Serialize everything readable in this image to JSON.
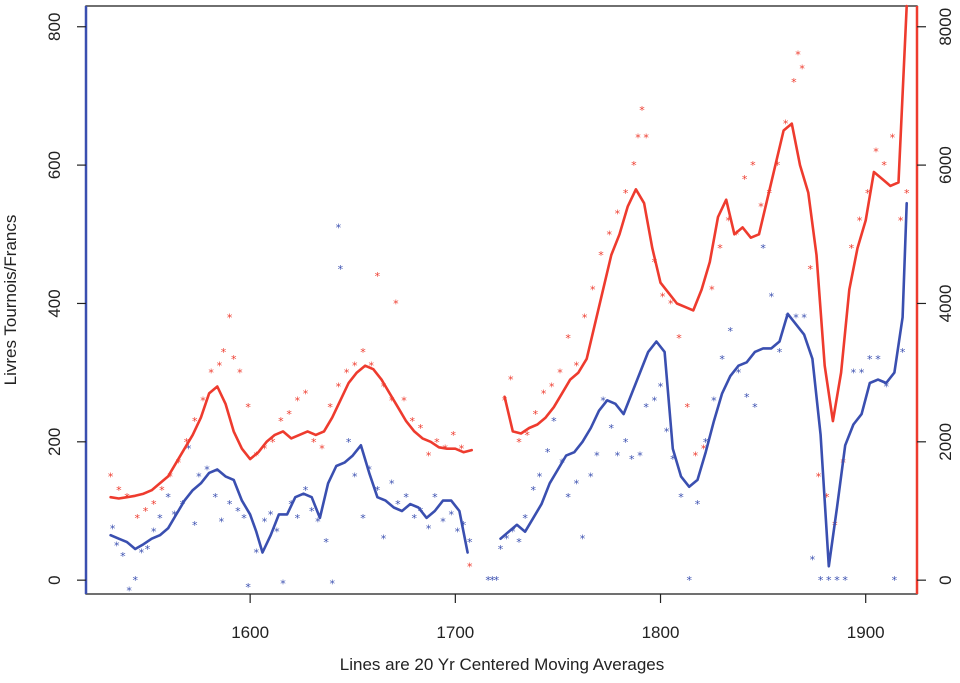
{
  "chart_data": {
    "type": "line",
    "title": "",
    "xlabel": "Lines are 20 Yr Centered Moving Averages",
    "ylabel": "Livres Tournois/Francs",
    "ylabel_right": "",
    "xlim": [
      1520,
      1925
    ],
    "ylim_left": [
      -20,
      830
    ],
    "ylim_right": [
      -200,
      8300
    ],
    "x_ticks": [
      "1600",
      "1700",
      "1800",
      "1900"
    ],
    "y_ticks_left": [
      "0",
      "200",
      "400",
      "600",
      "800"
    ],
    "y_ticks_right": [
      "0",
      "2000",
      "4000",
      "6000",
      "8000"
    ],
    "grid": false,
    "legend": "none",
    "colors": {
      "left_series": "#3a4fb0",
      "right_series": "#ee3b2e"
    },
    "series": [
      {
        "axis": "left",
        "kind": "moving_average",
        "color": "#3a4fb0",
        "x": [
          1532,
          1536,
          1540,
          1544,
          1548,
          1552,
          1556,
          1560,
          1564,
          1568,
          1572,
          1576,
          1580,
          1584,
          1588,
          1592,
          1596,
          1600,
          1603,
          1606,
          1610,
          1614,
          1618,
          1622,
          1626,
          1630,
          1634,
          1638,
          1642,
          1646,
          1650,
          1654,
          1658,
          1662,
          1666,
          1670,
          1674,
          1678,
          1682,
          1686,
          1690,
          1694,
          1698,
          1702,
          1706,
          null,
          1722,
          1726,
          1730,
          1734,
          1738,
          1742,
          1746,
          1750,
          1754,
          1758,
          1762,
          1766,
          1770,
          1774,
          1778,
          1782,
          1786,
          1790,
          1794,
          1798,
          1802,
          1806,
          1810,
          1814,
          1818,
          1822,
          1826,
          1830,
          1834,
          1838,
          1842,
          1846,
          1850,
          1854,
          1858,
          1862,
          1866,
          1870,
          1874,
          1878,
          1882,
          1886,
          1890,
          1894,
          1898,
          1902,
          1906,
          1910,
          1914,
          1918,
          1920
        ],
        "y": [
          65,
          60,
          55,
          45,
          52,
          60,
          65,
          75,
          95,
          115,
          130,
          140,
          155,
          160,
          150,
          145,
          115,
          95,
          70,
          40,
          65,
          95,
          95,
          120,
          125,
          120,
          90,
          140,
          165,
          170,
          180,
          195,
          155,
          120,
          115,
          105,
          100,
          110,
          105,
          90,
          100,
          115,
          115,
          100,
          40,
          null,
          60,
          70,
          80,
          70,
          90,
          110,
          140,
          160,
          180,
          185,
          200,
          220,
          245,
          260,
          255,
          240,
          270,
          300,
          330,
          345,
          330,
          190,
          150,
          135,
          145,
          185,
          230,
          270,
          295,
          310,
          315,
          330,
          335,
          335,
          345,
          385,
          370,
          355,
          320,
          210,
          20,
          105,
          195,
          225,
          240,
          285,
          290,
          285,
          300,
          380,
          545
        ]
      },
      {
        "axis": "left",
        "kind": "moving_average",
        "color": "#ee3b2e",
        "x": [
          1532,
          1536,
          1540,
          1544,
          1548,
          1552,
          1556,
          1560,
          1564,
          1568,
          1572,
          1576,
          1580,
          1584,
          1588,
          1592,
          1596,
          1600,
          1604,
          1608,
          1612,
          1616,
          1620,
          1624,
          1628,
          1632,
          1636,
          1640,
          1644,
          1648,
          1652,
          1656,
          1660,
          1664,
          1668,
          1672,
          1676,
          1680,
          1684,
          1688,
          1692,
          1696,
          1700,
          1704,
          1708,
          null,
          1724,
          1728,
          1732,
          1736,
          1740,
          1744,
          1748,
          1752,
          1756,
          1760,
          1764,
          1768,
          1772,
          1776,
          1780,
          1784,
          1788,
          1792,
          1796,
          1800,
          1804,
          1808,
          1812,
          1816,
          1820,
          1824,
          1828,
          1832,
          1836,
          1840,
          1844,
          1848,
          1852,
          1856,
          1860,
          1864,
          1868,
          1872,
          1876,
          1880,
          1884,
          1888,
          1892,
          1896,
          1900,
          1904,
          1908,
          1912,
          1916,
          1920
        ],
        "y": [
          120,
          118,
          120,
          122,
          125,
          130,
          140,
          150,
          170,
          190,
          210,
          235,
          270,
          280,
          255,
          215,
          190,
          175,
          185,
          200,
          210,
          215,
          205,
          210,
          215,
          210,
          215,
          235,
          260,
          285,
          300,
          310,
          305,
          290,
          270,
          250,
          230,
          215,
          205,
          200,
          192,
          190,
          190,
          185,
          188,
          null,
          265,
          215,
          212,
          220,
          225,
          235,
          250,
          270,
          290,
          300,
          320,
          370,
          420,
          470,
          500,
          540,
          565,
          545,
          480,
          430,
          415,
          400,
          395,
          390,
          420,
          460,
          525,
          550,
          500,
          510,
          495,
          500,
          550,
          600,
          650,
          660,
          600,
          560,
          470,
          310,
          230,
          300,
          420,
          480,
          520,
          590,
          580,
          570,
          575,
          830
        ]
      },
      {
        "axis": "left",
        "kind": "points",
        "color": "#3a4fb0",
        "x": [
          1533,
          1535,
          1538,
          1541,
          1544,
          1547,
          1550,
          1553,
          1556,
          1560,
          1563,
          1567,
          1570,
          1573,
          1575,
          1579,
          1583,
          1586,
          1590,
          1594,
          1597,
          1599,
          1603,
          1607,
          1610,
          1613,
          1616,
          1620,
          1623,
          1627,
          1630,
          1633,
          1637,
          1640,
          1643,
          1644,
          1648,
          1651,
          1655,
          1658,
          1662,
          1665,
          1669,
          1672,
          1676,
          1680,
          1683,
          1687,
          1690,
          1694,
          1698,
          1701,
          1704,
          1707,
          1716,
          1718,
          1720,
          1722,
          1725,
          1728,
          1731,
          1734,
          1738,
          1741,
          1745,
          1748,
          1752,
          1755,
          1759,
          1762,
          1766,
          1769,
          1772,
          1776,
          1779,
          1783,
          1786,
          1790,
          1793,
          1797,
          1800,
          1803,
          1806,
          1810,
          1814,
          1818,
          1822,
          1826,
          1830,
          1834,
          1838,
          1842,
          1846,
          1850,
          1854,
          1858,
          1862,
          1866,
          1870,
          1874,
          1878,
          1882,
          1886,
          1890,
          1894,
          1898,
          1902,
          1906,
          1910,
          1914,
          1918
        ],
        "y": [
          75,
          50,
          35,
          -15,
          0,
          40,
          45,
          70,
          90,
          120,
          95,
          110,
          190,
          80,
          150,
          160,
          120,
          85,
          110,
          100,
          90,
          -10,
          40,
          85,
          95,
          70,
          -5,
          110,
          90,
          130,
          100,
          85,
          55,
          -5,
          510,
          450,
          200,
          150,
          90,
          160,
          130,
          60,
          140,
          110,
          120,
          90,
          100,
          75,
          120,
          85,
          95,
          70,
          80,
          55,
          0,
          0,
          0,
          45,
          60,
          70,
          55,
          90,
          130,
          150,
          185,
          230,
          170,
          120,
          140,
          60,
          150,
          180,
          260,
          220,
          180,
          200,
          175,
          180,
          250,
          260,
          280,
          215,
          175,
          120,
          0,
          110,
          200,
          260,
          320,
          360,
          300,
          265,
          250,
          480,
          410,
          330,
          380,
          380,
          380,
          30,
          0,
          0,
          0,
          0,
          300,
          300,
          320,
          320,
          280,
          0,
          330
        ]
      },
      {
        "axis": "left",
        "kind": "points",
        "color": "#ee3b2e",
        "x": [
          1532,
          1536,
          1540,
          1545,
          1549,
          1553,
          1557,
          1561,
          1565,
          1569,
          1573,
          1577,
          1581,
          1585,
          1587,
          1590,
          1592,
          1595,
          1599,
          1603,
          1607,
          1611,
          1615,
          1619,
          1623,
          1627,
          1631,
          1635,
          1639,
          1643,
          1647,
          1651,
          1655,
          1659,
          1662,
          1665,
          1669,
          1671,
          1675,
          1679,
          1683,
          1687,
          1691,
          1695,
          1699,
          1703,
          1707,
          1724,
          1727,
          1731,
          1735,
          1739,
          1743,
          1747,
          1751,
          1755,
          1759,
          1763,
          1767,
          1771,
          1775,
          1779,
          1783,
          1787,
          1789,
          1791,
          1793,
          1797,
          1801,
          1805,
          1809,
          1813,
          1817,
          1821,
          1825,
          1829,
          1833,
          1837,
          1841,
          1845,
          1849,
          1853,
          1857,
          1861,
          1865,
          1867,
          1869,
          1873,
          1877,
          1881,
          1885,
          1889,
          1893,
          1897,
          1901,
          1905,
          1909,
          1913,
          1917,
          1920
        ],
        "y": [
          150,
          130,
          120,
          90,
          100,
          110,
          130,
          150,
          170,
          200,
          230,
          260,
          300,
          310,
          330,
          380,
          320,
          300,
          250,
          180,
          190,
          200,
          230,
          240,
          260,
          270,
          200,
          190,
          250,
          280,
          300,
          310,
          330,
          310,
          440,
          280,
          260,
          400,
          260,
          230,
          220,
          180,
          200,
          190,
          210,
          190,
          20,
          260,
          290,
          200,
          210,
          240,
          270,
          280,
          300,
          350,
          310,
          380,
          420,
          470,
          500,
          530,
          560,
          600,
          640,
          680,
          640,
          460,
          410,
          400,
          350,
          250,
          180,
          190,
          420,
          480,
          520,
          500,
          580,
          600,
          540,
          560,
          600,
          660,
          720,
          760,
          740,
          450,
          150,
          120,
          80,
          170,
          480,
          520,
          560,
          620,
          600,
          640,
          520,
          560
        ]
      }
    ]
  }
}
